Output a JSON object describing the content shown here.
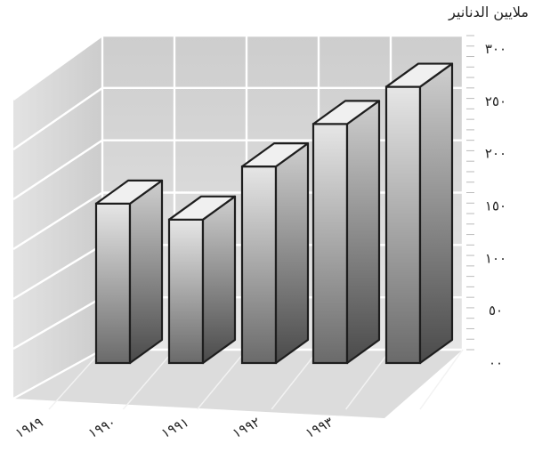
{
  "chart_data": {
    "type": "bar",
    "title": "",
    "ylabel": "ملايين الدنانير",
    "categories": [
      "١٩٨٩",
      "١٩٩٠",
      "١٩٩١",
      "١٩٩٢",
      "١٩٩٣"
    ],
    "values": [
      150,
      135,
      185,
      225,
      260
    ],
    "y_ticks": [
      "٠٠",
      "٥٠",
      "١٠٠",
      "١٥٠",
      "٢٠٠",
      "٢٥٠",
      "٣٠٠"
    ],
    "ylim": [
      0,
      300
    ],
    "grid": true,
    "style": "3d",
    "colors": {
      "bar_front_top": "#e6e6e6",
      "bar_front_bottom": "#6a6a6a",
      "bar_edge": "#1e1e1e",
      "wall": "#cfcfcf",
      "grid": "#ffffff"
    }
  }
}
